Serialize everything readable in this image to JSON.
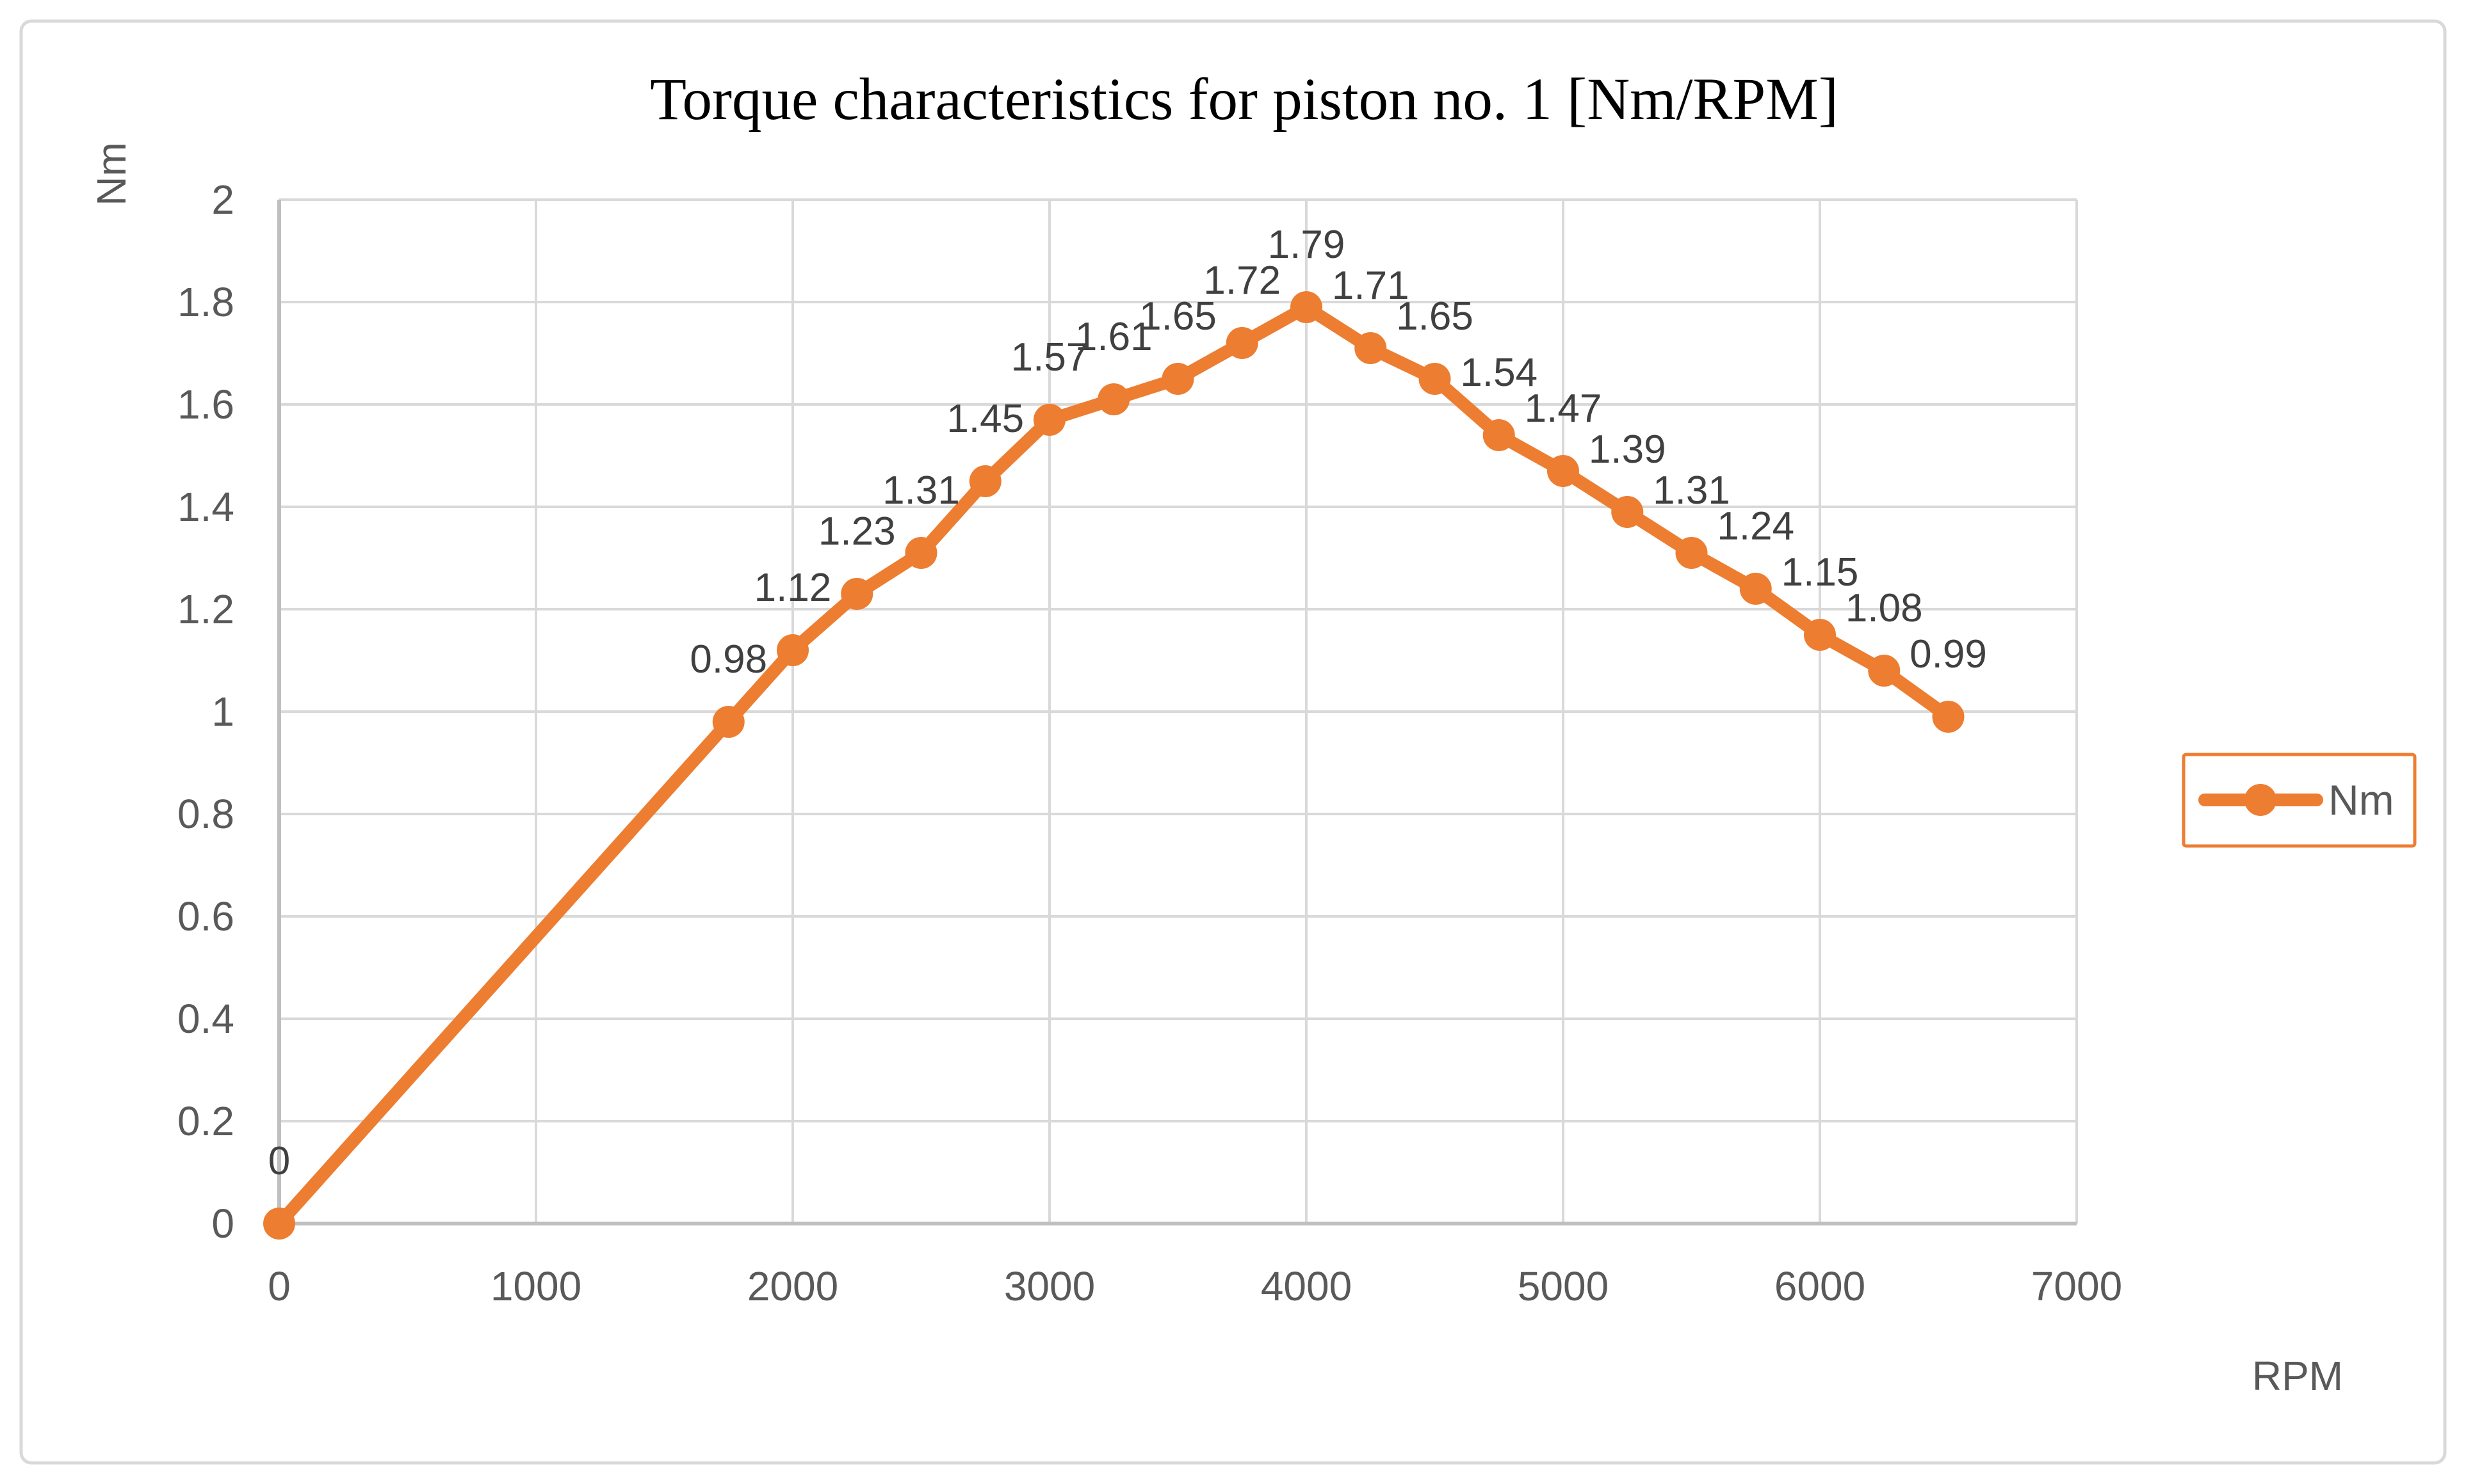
{
  "chart_data": {
    "type": "line",
    "title": "Torque characteristics for piston no. 1 [Nm/RPM]",
    "xlabel": "RPM",
    "ylabel": "Nm",
    "xlim": [
      0,
      7000
    ],
    "ylim": [
      0,
      2
    ],
    "x_ticks": [
      0,
      1000,
      2000,
      3000,
      4000,
      5000,
      6000,
      7000
    ],
    "x_tick_labels": [
      "0",
      "1000",
      "2000",
      "3000",
      "4000",
      "5000",
      "6000",
      "7000"
    ],
    "y_ticks": [
      0,
      0.2,
      0.4,
      0.6,
      0.8,
      1,
      1.2,
      1.4,
      1.6,
      1.8,
      2
    ],
    "y_tick_labels": [
      "0",
      "0.2",
      "0.4",
      "0.6",
      "0.8",
      "1",
      "1.2",
      "1.4",
      "1.6",
      "1.8",
      "2"
    ],
    "grid": true,
    "legend_position": "right",
    "series": [
      {
        "name": "Nm",
        "marker": "circle",
        "x": [
          0,
          1750,
          2000,
          2250,
          2500,
          2750,
          3000,
          3250,
          3500,
          3750,
          4000,
          4250,
          4500,
          4750,
          5000,
          5250,
          5500,
          5750,
          6000,
          6250,
          6500
        ],
        "y": [
          0,
          0.98,
          1.12,
          1.23,
          1.31,
          1.45,
          1.57,
          1.61,
          1.65,
          1.72,
          1.79,
          1.71,
          1.65,
          1.54,
          1.47,
          1.39,
          1.31,
          1.24,
          1.15,
          1.08,
          0.99
        ],
        "data_labels": [
          "0",
          "0.98",
          "1.12",
          "1.23",
          "1.31",
          "1.45",
          "1.57",
          "1.61",
          "1.65",
          "1.72",
          "1.79",
          "1.71",
          "1.65",
          "1.54",
          "1.47",
          "1.39",
          "1.31",
          "1.24",
          "1.15",
          "1.08",
          "0.99"
        ]
      }
    ],
    "colors": {
      "series": "#ED7D31",
      "gridline": "#D9D9D9",
      "axis_line": "#BFBFBF",
      "tick_label": "#595959",
      "data_label": "#404040",
      "title": "#000000",
      "chart_border": "#D9D9D9",
      "background": "#FFFFFF",
      "legend_border": "#ED7D31"
    }
  }
}
